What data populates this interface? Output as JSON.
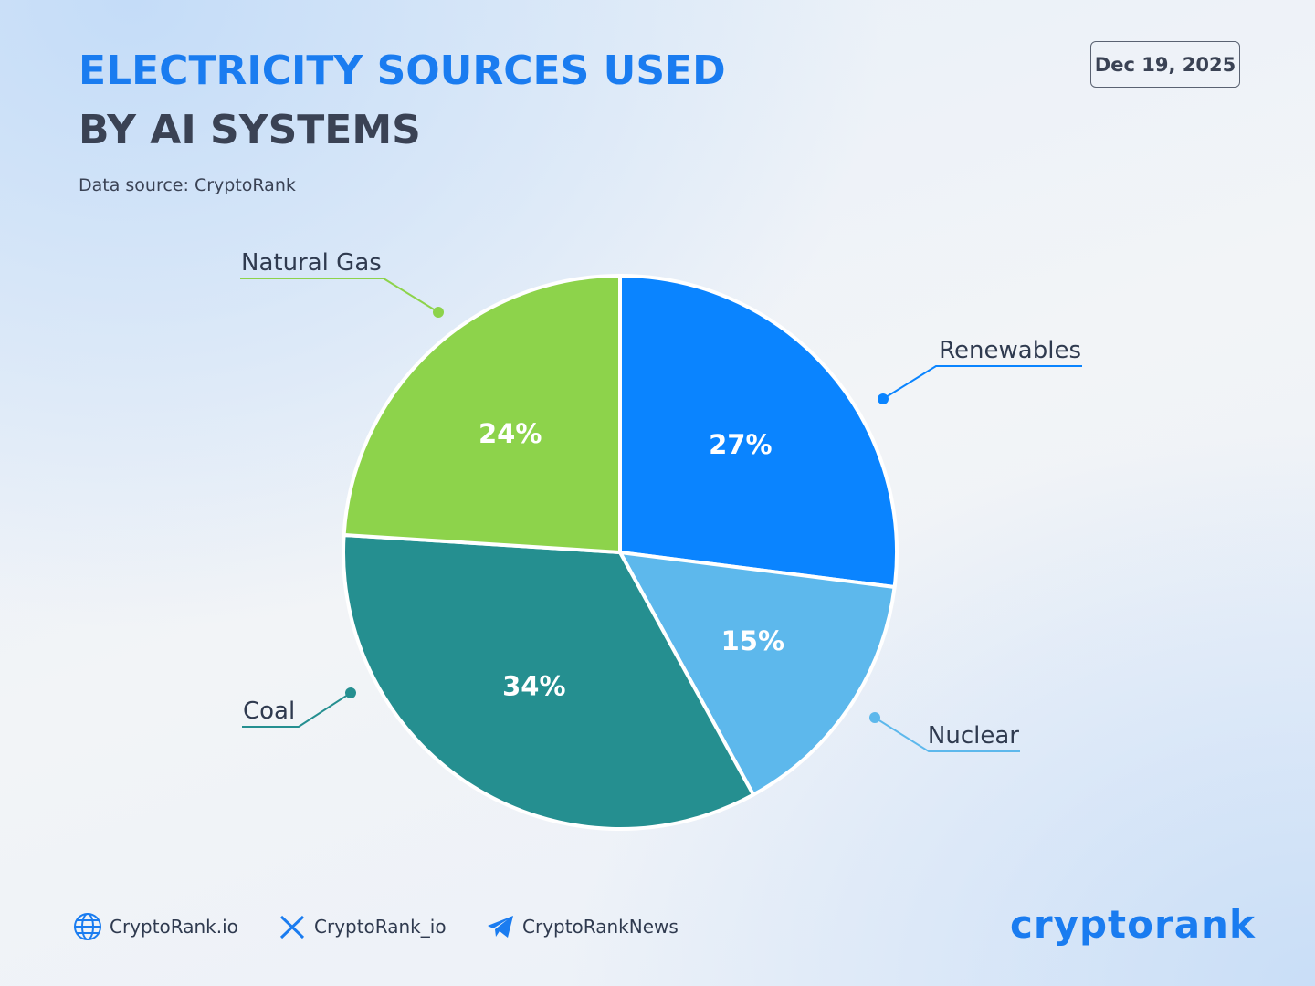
{
  "header": {
    "title_lines": [
      "ELECTRICITY SOURCES USED",
      "BY AI SYSTEMS"
    ],
    "source": "Data source: CryptoRank",
    "date": "Dec 19, 2025"
  },
  "chart_data": {
    "type": "pie",
    "categories": [
      "Renewables",
      "Nuclear",
      "Coal",
      "Natural Gas"
    ],
    "values": [
      27,
      15,
      34,
      24
    ],
    "value_labels": [
      "27%",
      "15%",
      "34%",
      "24%"
    ],
    "colors": [
      "#0a84ff",
      "#5db8ec",
      "#258f90",
      "#8dd34b"
    ]
  },
  "footer": {
    "links": [
      "CryptoRank.io",
      "CryptoRank_io",
      "CryptoRankNews"
    ],
    "brand": "cryptorank"
  }
}
